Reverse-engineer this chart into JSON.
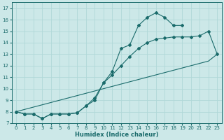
{
  "xlabel": "Humidex (Indice chaleur)",
  "xlim": [
    -0.5,
    23.5
  ],
  "ylim": [
    7,
    17.5
  ],
  "yticks": [
    7,
    8,
    9,
    10,
    11,
    12,
    13,
    14,
    15,
    16,
    17
  ],
  "xticks": [
    0,
    1,
    2,
    3,
    4,
    5,
    6,
    7,
    8,
    9,
    10,
    11,
    12,
    13,
    14,
    15,
    16,
    17,
    18,
    19,
    20,
    21,
    22,
    23
  ],
  "bg_color": "#cce8e8",
  "grid_color": "#b0d8d8",
  "line_color": "#1a6b6b",
  "line1_y": [
    8.0,
    7.8,
    7.8,
    7.4,
    7.8,
    7.8,
    7.8,
    7.9,
    8.5,
    9.0,
    10.5,
    11.5,
    13.5,
    13.8,
    15.5,
    16.2,
    16.6,
    16.2,
    15.5,
    15.5,
    null,
    null,
    null,
    null
  ],
  "line2_y": [
    8.0,
    7.8,
    7.8,
    7.4,
    7.8,
    7.8,
    7.8,
    7.9,
    8.5,
    9.2,
    10.5,
    11.2,
    12.0,
    12.8,
    13.5,
    14.0,
    14.3,
    14.4,
    14.5,
    14.5,
    14.5,
    14.6,
    15.0,
    13.0
  ],
  "line3_y": [
    8.0,
    8.2,
    8.4,
    8.6,
    8.8,
    9.0,
    9.2,
    9.4,
    9.6,
    9.8,
    10.0,
    10.2,
    10.4,
    10.6,
    10.8,
    11.0,
    11.2,
    11.4,
    11.6,
    11.8,
    12.0,
    12.2,
    12.4,
    13.0
  ]
}
